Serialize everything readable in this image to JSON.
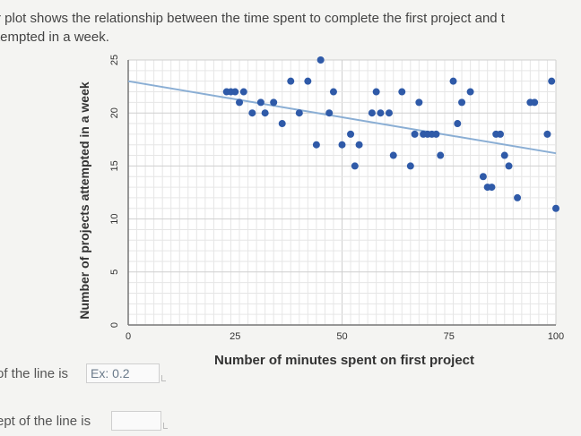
{
  "question": {
    "line1": "r plot shows the relationship between the time spent to complete the first project and t",
    "line2": "tempted in a week."
  },
  "chart_data": {
    "type": "scatter",
    "xlabel": "Number of minutes spent on first project",
    "ylabel": "Number of projects attempted in a week",
    "xlim": [
      0,
      100
    ],
    "ylim": [
      0,
      25
    ],
    "xticks": [
      "0",
      "25",
      "50",
      "75",
      "100"
    ],
    "yticks": [
      "0",
      "5",
      "10",
      "15",
      "20",
      "25"
    ],
    "grid": true,
    "point_color": "#2f5aa8",
    "line_color": "#8aaed4",
    "trend_line": {
      "x": [
        0,
        100
      ],
      "y": [
        23,
        16.2
      ]
    },
    "points": [
      {
        "x": 23,
        "y": 22
      },
      {
        "x": 24,
        "y": 22
      },
      {
        "x": 25,
        "y": 22
      },
      {
        "x": 26,
        "y": 21
      },
      {
        "x": 27,
        "y": 22
      },
      {
        "x": 29,
        "y": 20
      },
      {
        "x": 31,
        "y": 21
      },
      {
        "x": 32,
        "y": 20
      },
      {
        "x": 34,
        "y": 21
      },
      {
        "x": 36,
        "y": 19
      },
      {
        "x": 38,
        "y": 23
      },
      {
        "x": 40,
        "y": 20
      },
      {
        "x": 42,
        "y": 23
      },
      {
        "x": 44,
        "y": 17
      },
      {
        "x": 45,
        "y": 25
      },
      {
        "x": 47,
        "y": 20
      },
      {
        "x": 48,
        "y": 22
      },
      {
        "x": 50,
        "y": 17
      },
      {
        "x": 52,
        "y": 18
      },
      {
        "x": 53,
        "y": 15
      },
      {
        "x": 54,
        "y": 17
      },
      {
        "x": 57,
        "y": 20
      },
      {
        "x": 58,
        "y": 22
      },
      {
        "x": 59,
        "y": 20
      },
      {
        "x": 61,
        "y": 20
      },
      {
        "x": 62,
        "y": 16
      },
      {
        "x": 64,
        "y": 22
      },
      {
        "x": 66,
        "y": 15
      },
      {
        "x": 67,
        "y": 18
      },
      {
        "x": 68,
        "y": 21
      },
      {
        "x": 69,
        "y": 18
      },
      {
        "x": 70,
        "y": 18
      },
      {
        "x": 71,
        "y": 18
      },
      {
        "x": 72,
        "y": 18
      },
      {
        "x": 73,
        "y": 16
      },
      {
        "x": 76,
        "y": 23
      },
      {
        "x": 77,
        "y": 19
      },
      {
        "x": 78,
        "y": 21
      },
      {
        "x": 80,
        "y": 22
      },
      {
        "x": 83,
        "y": 14
      },
      {
        "x": 84,
        "y": 13
      },
      {
        "x": 85,
        "y": 13
      },
      {
        "x": 86,
        "y": 18
      },
      {
        "x": 87,
        "y": 18
      },
      {
        "x": 88,
        "y": 16
      },
      {
        "x": 89,
        "y": 15
      },
      {
        "x": 91,
        "y": 12
      },
      {
        "x": 94,
        "y": 21
      },
      {
        "x": 95,
        "y": 21
      },
      {
        "x": 98,
        "y": 18
      },
      {
        "x": 99,
        "y": 23
      },
      {
        "x": 100,
        "y": 11
      }
    ]
  },
  "answers": {
    "slope": {
      "label": "of the line is",
      "placeholder": "Ex: 0.2"
    },
    "intercept": {
      "label": "ept of the line is",
      "placeholder": ""
    }
  }
}
